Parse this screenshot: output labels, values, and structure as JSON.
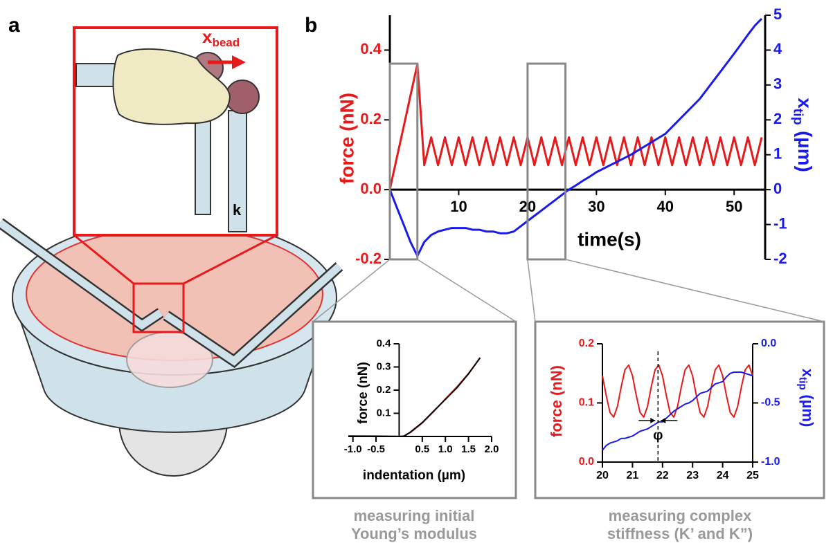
{
  "panels": {
    "a": "a",
    "b": "b"
  },
  "illustration": {
    "x_label": "x",
    "x_sub": "bead",
    "k_label": "k"
  },
  "captions": [
    [
      "measuring initial",
      "Young’s modulus"
    ],
    [
      "measuring complex",
      "stiffness (K’ and K”)"
    ]
  ],
  "chart_data": [
    {
      "type": "line",
      "xlabel": "time(s)",
      "ylabel": "force (nN)",
      "y2label": "x",
      "y2label_sub": "tip",
      "y2label_unit": "(µm)",
      "x": [
        0,
        1,
        2,
        3,
        4,
        5,
        6,
        7,
        8,
        9,
        10,
        11,
        12,
        13,
        14,
        15,
        16,
        17,
        18,
        19,
        20,
        21,
        22,
        23,
        24,
        25,
        26,
        27,
        28,
        29,
        30,
        31,
        32,
        33,
        34,
        35,
        36,
        37,
        38,
        39,
        40,
        41,
        42,
        43,
        44,
        45,
        46,
        47,
        48,
        49,
        50,
        51,
        52,
        53,
        54
      ],
      "xlim": [
        0,
        54.5
      ],
      "xticks": [
        10,
        20,
        30,
        40,
        50
      ],
      "ylim": [
        -0.2,
        0.5
      ],
      "yticks": [
        -0.2,
        {
          "value": 0,
          "label": "0.0"
        },
        0.2,
        0.4
      ],
      "y2lim": [
        -2,
        5
      ],
      "y2ticks": [
        -2,
        -1,
        0,
        1,
        2,
        3,
        4,
        5
      ],
      "series": [
        {
          "color": "#e8191a",
          "values": [
            0,
            0.09,
            0.18,
            0.27,
            0.36,
            0.07,
            0.15,
            0.07,
            0.15,
            0.07,
            0.15,
            0.07,
            0.15,
            0.07,
            0.15,
            0.07,
            0.15,
            0.07,
            0.15,
            0.07,
            0.15,
            0.07,
            0.15,
            0.07,
            0.15,
            0.07,
            0.15,
            0.07,
            0.15,
            0.07,
            0.15,
            0.07,
            0.15,
            0.07,
            0.15,
            0.07,
            0.15,
            0.07,
            0.15,
            0.07,
            0.15,
            0.07,
            0.15,
            0.07,
            0.15,
            0.07,
            0.15,
            0.07,
            0.15,
            0.07,
            0.15,
            0.07,
            0.15,
            0.07,
            0.15
          ]
        },
        {
          "color": "#1a1aee",
          "axis": "y2",
          "values": [
            0,
            -0.5,
            -1.0,
            -1.5,
            -1.9,
            -1.5,
            -1.3,
            -1.2,
            -1.15,
            -1.1,
            -1.1,
            -1.1,
            -1.15,
            -1.15,
            -1.2,
            -1.2,
            -1.25,
            -1.25,
            -1.2,
            -1.05,
            -0.9,
            -0.75,
            -0.6,
            -0.45,
            -0.3,
            -0.15,
            0,
            0.12,
            0.25,
            0.37,
            0.5,
            0.6,
            0.7,
            0.8,
            0.9,
            1.0,
            1.12,
            1.24,
            1.36,
            1.48,
            1.6,
            1.8,
            2.0,
            2.2,
            2.4,
            2.6,
            2.86,
            3.12,
            3.38,
            3.64,
            3.9,
            4.17,
            4.44,
            4.7,
            4.9
          ]
        }
      ],
      "highlights": [
        [
          0,
          4
        ],
        [
          20,
          25.5
        ]
      ]
    },
    {
      "type": "line",
      "xlabel": "indentation (µm)",
      "ylabel": "force (nN)",
      "x": [
        -1.1,
        -0.5,
        0,
        0.1,
        0.25,
        0.5,
        0.75,
        1.0,
        1.25,
        1.5,
        1.75
      ],
      "xlim": [
        -1.1,
        2.0
      ],
      "xticks": [
        {
          "value": -1,
          "label": "-1.0"
        },
        -0.5,
        0.5,
        {
          "value": 1,
          "label": "1.0"
        },
        1.5,
        {
          "value": 2,
          "label": "2.0"
        }
      ],
      "ylim": [
        0,
        0.4
      ],
      "yticks": [
        0.1,
        0.2,
        0.3,
        0.4
      ],
      "series": [
        {
          "color": "#e8191a",
          "values": [
            0.003,
            0.002,
            0.001,
            0.002,
            0.018,
            0.058,
            0.108,
            0.162,
            0.214,
            0.272,
            0.338
          ]
        },
        {
          "color": "#000000",
          "values": [
            0,
            0,
            0,
            0,
            0.02,
            0.06,
            0.11,
            0.16,
            0.21,
            0.27,
            0.34
          ]
        }
      ]
    },
    {
      "type": "line",
      "ylabel": "force (nN)",
      "y2label": "x",
      "y2label_sub": "tip",
      "y2label_unit": "(µm)",
      "annotation": "φ",
      "phase_x": 21.85,
      "x": [
        20,
        20.125,
        20.25,
        20.375,
        20.5,
        20.625,
        20.75,
        20.875,
        21,
        21.125,
        21.25,
        21.375,
        21.5,
        21.625,
        21.75,
        21.875,
        22,
        22.125,
        22.25,
        22.375,
        22.5,
        22.625,
        22.75,
        22.875,
        23,
        23.125,
        23.25,
        23.375,
        23.5,
        23.625,
        23.75,
        23.875,
        24,
        24.125,
        24.25,
        24.375,
        24.5,
        24.625,
        24.75,
        24.875,
        25
      ],
      "xlim": [
        20,
        25
      ],
      "xticks": [
        20,
        21,
        22,
        23,
        24,
        25
      ],
      "ylim": [
        0,
        0.2
      ],
      "yticks": [
        {
          "value": 0,
          "label": "0.0"
        },
        0.1,
        0.2
      ],
      "y2lim": [
        -1,
        0
      ],
      "y2ticks": [
        {
          "value": -1,
          "label": "-1.0"
        },
        -0.5,
        {
          "value": 0,
          "label": "0.0"
        }
      ],
      "series": [
        {
          "color": "#e8191a",
          "values": [
            0.146,
            0.113,
            0.084,
            0.076,
            0.094,
            0.127,
            0.156,
            0.164,
            0.146,
            0.113,
            0.084,
            0.076,
            0.094,
            0.127,
            0.156,
            0.164,
            0.146,
            0.113,
            0.084,
            0.076,
            0.094,
            0.127,
            0.156,
            0.164,
            0.146,
            0.113,
            0.084,
            0.076,
            0.094,
            0.127,
            0.156,
            0.164,
            0.146,
            0.113,
            0.084,
            0.076,
            0.094,
            0.127,
            0.156,
            0.164,
            0.146
          ]
        },
        {
          "color": "#1a1aee",
          "axis": "y2",
          "values": [
            -0.9,
            -0.86,
            -0.84,
            -0.83,
            -0.82,
            -0.8,
            -0.8,
            -0.79,
            -0.78,
            -0.76,
            -0.74,
            -0.73,
            -0.72,
            -0.7,
            -0.68,
            -0.66,
            -0.66,
            -0.63,
            -0.6,
            -0.57,
            -0.55,
            -0.53,
            -0.51,
            -0.5,
            -0.48,
            -0.45,
            -0.42,
            -0.41,
            -0.4,
            -0.37,
            -0.34,
            -0.33,
            -0.32,
            -0.28,
            -0.25,
            -0.24,
            -0.24,
            -0.24,
            -0.25,
            -0.26,
            -0.27
          ]
        }
      ]
    }
  ]
}
